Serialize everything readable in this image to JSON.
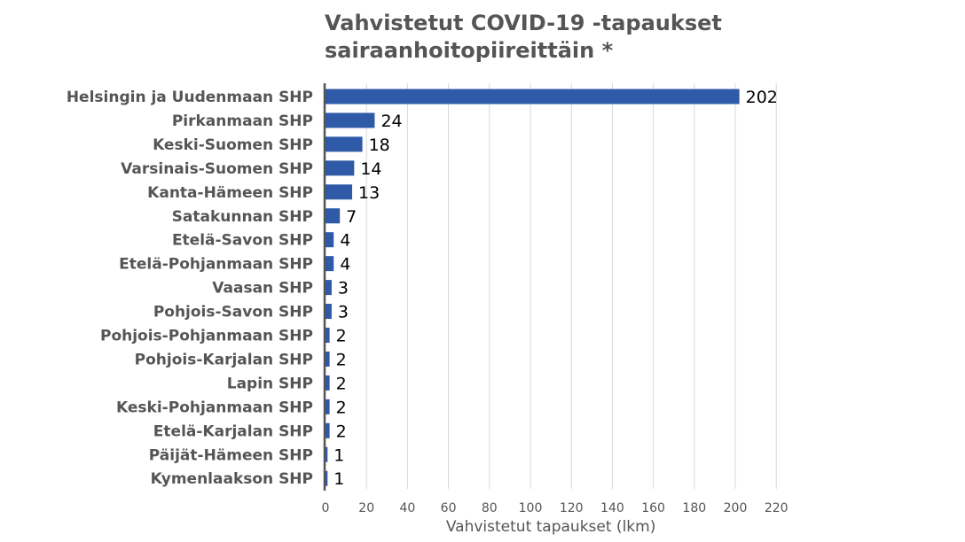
{
  "chart_data": {
    "type": "bar",
    "orientation": "horizontal",
    "title_lines": [
      "Vahvistetut COVID-19 -tapaukset",
      "sairaanhoitopiireittäin *"
    ],
    "xlabel": "Vahvistetut tapaukset (lkm)",
    "ylabel": "",
    "xlim": [
      0,
      220
    ],
    "xticks": [
      0,
      20,
      40,
      60,
      80,
      100,
      120,
      140,
      160,
      180,
      200,
      220
    ],
    "grid": "vertical",
    "categories": [
      "Helsingin ja Uudenmaan SHP",
      "Pirkanmaan SHP",
      "Keski-Suomen SHP",
      "Varsinais-Suomen SHP",
      "Kanta-Hämeen SHP",
      "Satakunnan SHP",
      "Etelä-Savon SHP",
      "Etelä-Pohjanmaan SHP",
      "Vaasan SHP",
      "Pohjois-Savon SHP",
      "Pohjois-Pohjanmaan SHP",
      "Pohjois-Karjalan SHP",
      "Lapin SHP",
      "Keski-Pohjanmaan SHP",
      "Etelä-Karjalan SHP",
      "Päijät-Hämeen SHP",
      "Kymenlaakson SHP"
    ],
    "values": [
      202,
      24,
      18,
      14,
      13,
      7,
      4,
      4,
      3,
      3,
      2,
      2,
      2,
      2,
      2,
      1,
      1
    ],
    "colors": {
      "bar": "#2e5aa8",
      "title": "#555555",
      "category_label": "#555555",
      "tick_label": "#555555",
      "value_label": "#000000",
      "grid": "#d9d9d9",
      "axis": "#555555"
    }
  }
}
